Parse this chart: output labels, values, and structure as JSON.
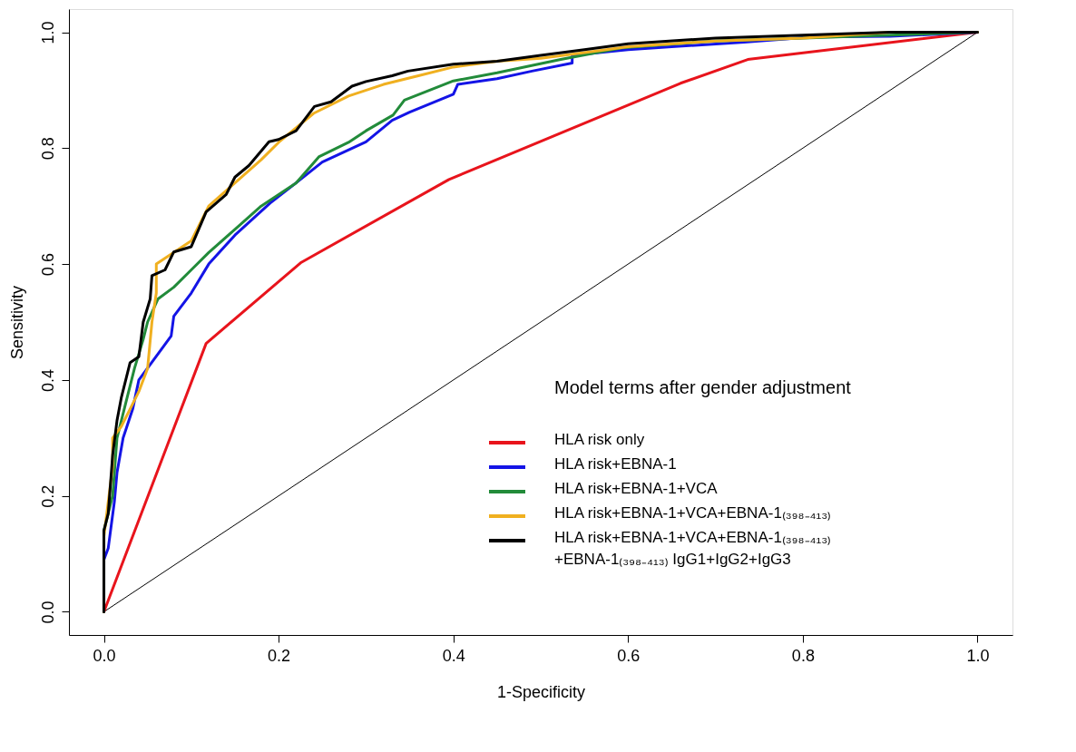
{
  "chart_data": {
    "type": "line",
    "xlabel": "1-Specificity",
    "ylabel": "Sensitivity",
    "legend_title": "Model terms after gender adjustment",
    "legend": "bottom right",
    "marker": "none",
    "line_style": "solid",
    "xlim": [
      -0.04,
      1.04
    ],
    "ylim": [
      -0.04,
      1.04
    ],
    "xticks": [
      {
        "value": 0,
        "label": "0.0"
      },
      0.2,
      0.4,
      0.6,
      0.8,
      {
        "value": 1,
        "label": "1.0"
      }
    ],
    "yticks": [
      {
        "value": 0,
        "label": "0.0"
      },
      0.2,
      0.4,
      0.6,
      0.8,
      {
        "value": 1,
        "label": "1.0"
      }
    ],
    "series": [
      {
        "color": "#000000",
        "x": [
          0,
          1
        ],
        "values": [
          0,
          1
        ]
      },
      {
        "name": "HLA risk only",
        "color": "#e8141c",
        "x": [
          0,
          0.117,
          0.226,
          0.395,
          0.66,
          0.737,
          1
        ],
        "values": [
          0,
          0.463,
          0.603,
          0.746,
          0.912,
          0.953,
          1
        ]
      },
      {
        "name": "HLA risk+EBNA-1",
        "color": "#1414e6",
        "x": [
          0,
          0,
          0.005,
          0.012,
          0.015,
          0.022,
          0.033,
          0.04,
          0.057,
          0.077,
          0.08,
          0.1,
          0.12,
          0.15,
          0.19,
          0.22,
          0.25,
          0.3,
          0.33,
          0.35,
          0.4,
          0.405,
          0.45,
          0.49,
          0.536,
          0.536,
          0.6,
          0.65,
          0.733,
          0.81,
          0.9,
          1
        ],
        "values": [
          0,
          0.09,
          0.11,
          0.19,
          0.24,
          0.3,
          0.35,
          0.4,
          0.435,
          0.476,
          0.51,
          0.55,
          0.6,
          0.65,
          0.705,
          0.74,
          0.776,
          0.811,
          0.848,
          0.862,
          0.893,
          0.91,
          0.92,
          0.933,
          0.947,
          0.96,
          0.97,
          0.975,
          0.983,
          0.992,
          0.993,
          1
        ]
      },
      {
        "name": "HLA risk+EBNA-1+VCA",
        "color": "#228b3a",
        "x": [
          0,
          0,
          0.01,
          0.015,
          0.025,
          0.035,
          0.045,
          0.05,
          0.062,
          0.08,
          0.1,
          0.12,
          0.15,
          0.18,
          0.2,
          0.22,
          0.246,
          0.28,
          0.3,
          0.331,
          0.344,
          0.4,
          0.45,
          0.523,
          0.593,
          0.7,
          0.8,
          0.9,
          1
        ],
        "values": [
          0,
          0.14,
          0.2,
          0.3,
          0.36,
          0.42,
          0.47,
          0.5,
          0.54,
          0.56,
          0.59,
          0.62,
          0.66,
          0.7,
          0.72,
          0.74,
          0.785,
          0.81,
          0.83,
          0.857,
          0.883,
          0.916,
          0.93,
          0.953,
          0.973,
          0.985,
          0.99,
          0.995,
          1
        ]
      },
      {
        "name": "HLA risk+EBNA-1+VCA+EBNA-1₍₃₉₈₋₄₁₃₎",
        "color": "#f0b020",
        "x": [
          0,
          0,
          0.01,
          0.01,
          0.02,
          0.03,
          0.04,
          0.05,
          0.055,
          0.06,
          0.06,
          0.08,
          0.1,
          0.12,
          0.15,
          0.18,
          0.2,
          0.24,
          0.28,
          0.32,
          0.36,
          0.4,
          0.45,
          0.5,
          0.55,
          0.6,
          0.7,
          0.8,
          0.9,
          1
        ],
        "values": [
          0,
          0.13,
          0.25,
          0.3,
          0.32,
          0.35,
          0.38,
          0.42,
          0.5,
          0.55,
          0.6,
          0.62,
          0.64,
          0.7,
          0.74,
          0.78,
          0.81,
          0.86,
          0.89,
          0.91,
          0.925,
          0.94,
          0.95,
          0.955,
          0.965,
          0.975,
          0.985,
          0.99,
          1,
          1
        ]
      },
      {
        "name": "HLA risk+EBNA-1+VCA+EBNA-1₍₃₉₈₋₄₁₃₎\n+EBNA-1₍₃₉₈₋₄₁₃₎ IgG1+IgG2+IgG3",
        "color": "#000000",
        "x": [
          0,
          0,
          0.005,
          0.01,
          0.015,
          0.02,
          0.025,
          0.03,
          0.04,
          0.045,
          0.053,
          0.055,
          0.07,
          0.08,
          0.1,
          0.117,
          0.14,
          0.15,
          0.166,
          0.189,
          0.2,
          0.22,
          0.241,
          0.26,
          0.284,
          0.3,
          0.33,
          0.348,
          0.4,
          0.45,
          0.5,
          0.55,
          0.6,
          0.7,
          0.8,
          0.9,
          1
        ],
        "values": [
          0,
          0.14,
          0.17,
          0.27,
          0.33,
          0.37,
          0.4,
          0.43,
          0.44,
          0.5,
          0.54,
          0.58,
          0.59,
          0.621,
          0.63,
          0.69,
          0.72,
          0.75,
          0.77,
          0.811,
          0.815,
          0.83,
          0.872,
          0.88,
          0.907,
          0.915,
          0.925,
          0.933,
          0.945,
          0.95,
          0.96,
          0.97,
          0.98,
          0.99,
          0.995,
          1,
          1
        ]
      }
    ]
  }
}
